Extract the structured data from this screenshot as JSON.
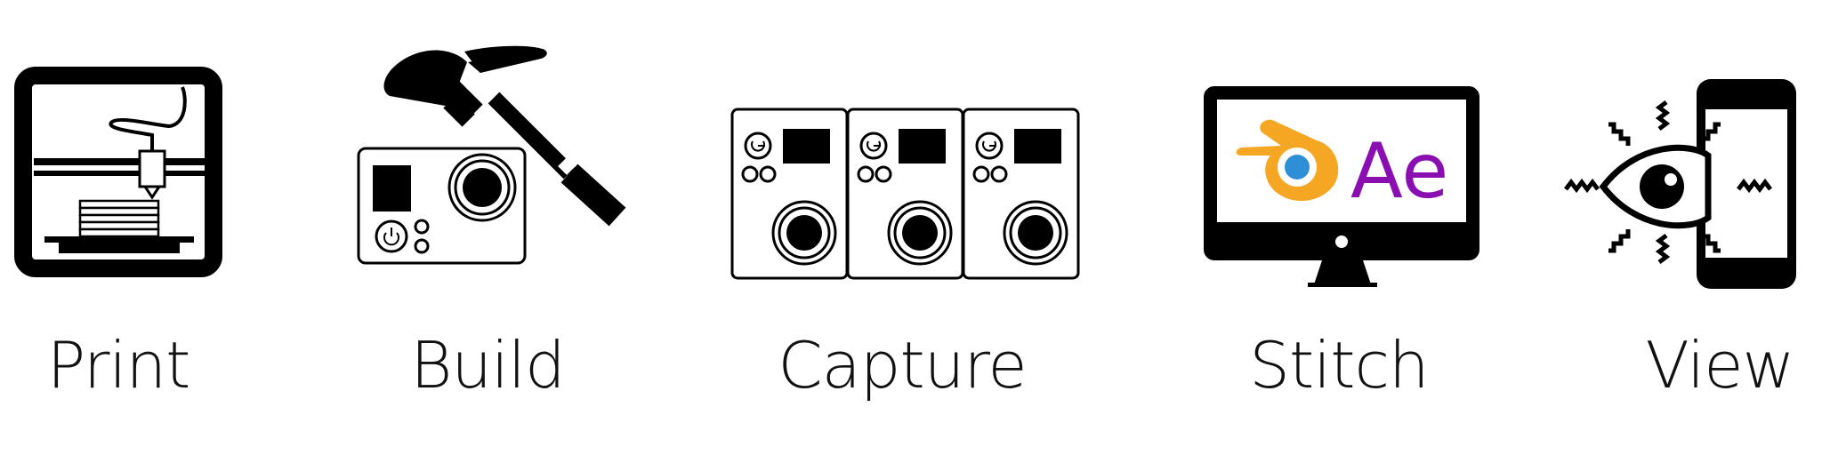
{
  "steps": [
    {
      "label": "Print"
    },
    {
      "label": "Build"
    },
    {
      "label": "Capture"
    },
    {
      "label": "Stitch"
    },
    {
      "label": "View"
    }
  ],
  "stitch_screen_text": "Ae",
  "colors": {
    "ink": "#000000",
    "blender_orange": "#f5a623",
    "blender_blue": "#2e8fd6",
    "ae_purple": "#8a0fb0"
  },
  "icons": [
    "3d-printer-icon",
    "camera-hammer-icon",
    "camera-array-icon",
    "monitor-icon",
    "eye-phone-icon"
  ]
}
